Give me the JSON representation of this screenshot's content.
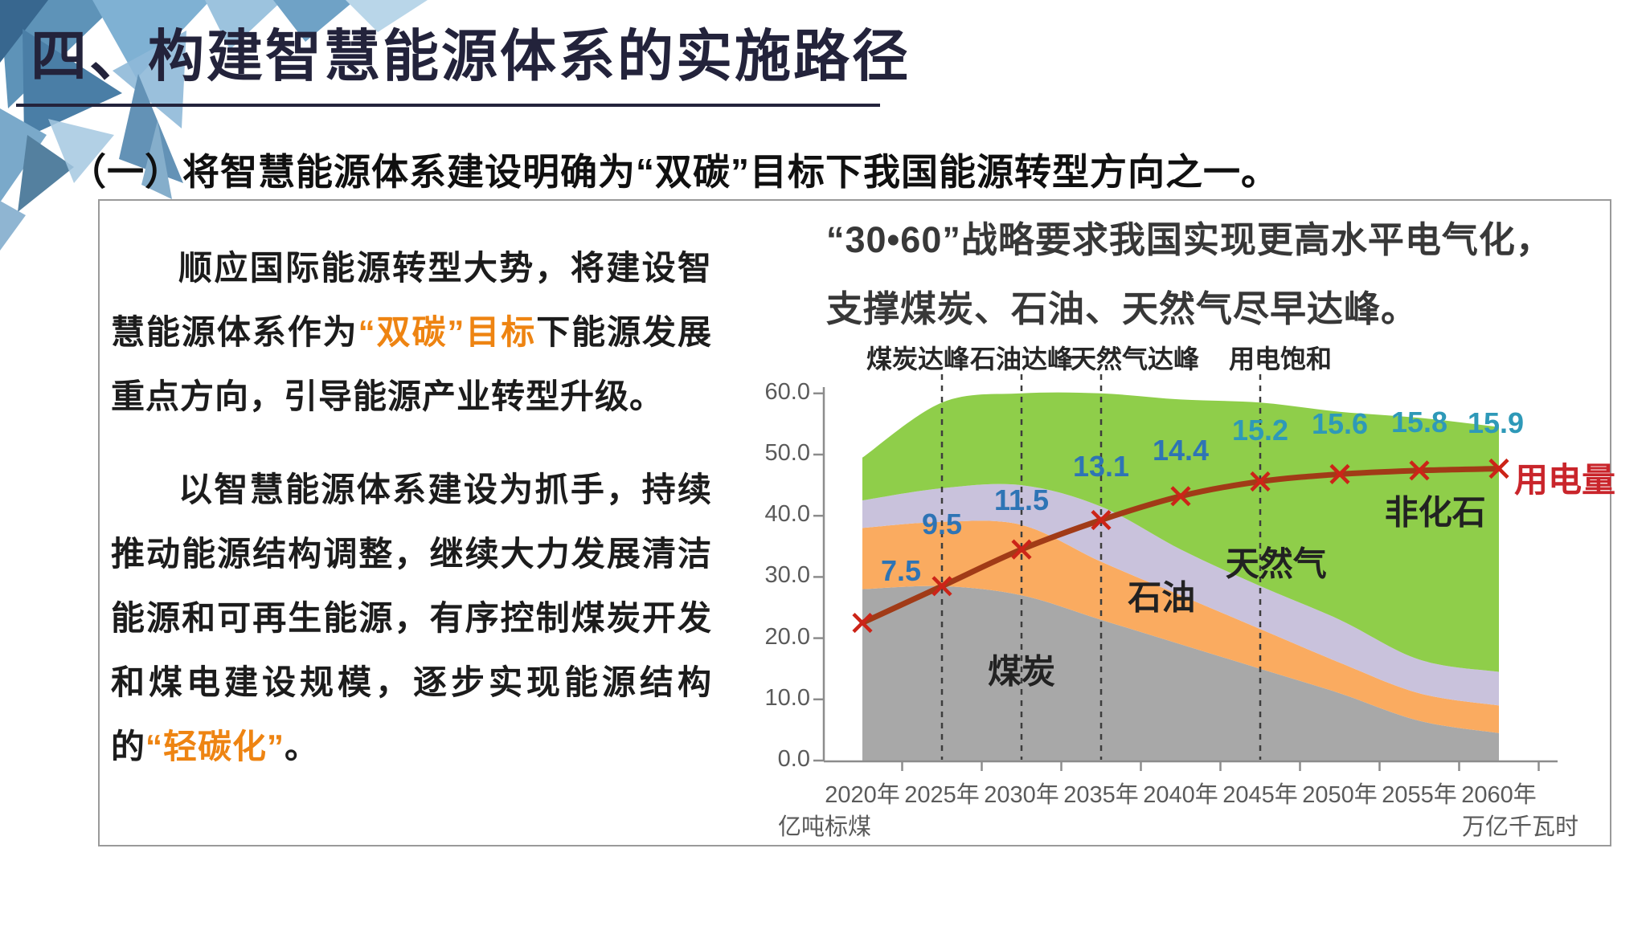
{
  "header": {
    "title": "四、构建智慧能源体系的实施路径",
    "subtitle": "（一）将智慧能源体系建设明确为“双碳”目标下我国能源转型方向之一。"
  },
  "left_panel": {
    "text_color": "#1c1c1c",
    "highlight_color": "#EE8412",
    "paragraph1": [
      {
        "text": "顺应国际能源转型大势，将建设智慧能源体系作为",
        "highlight": false
      },
      {
        "text": "“双碳”目标",
        "highlight": true
      },
      {
        "text": "下能源发展重点方向，引导能源产业转型升级。",
        "highlight": false
      }
    ],
    "paragraph2": [
      {
        "text": "以智慧能源体系建设为抓手，持续推动能源结构调整，继续大力发展清洁能源和可再生能源，有序控制煤炭开发和煤电建设规模，逐步实现能源结构的",
        "highlight": false
      },
      {
        "text": "“轻碳化”",
        "highlight": true
      },
      {
        "text": "。",
        "highlight": false
      }
    ]
  },
  "chart": {
    "title_line1": "“30•60”战略要求我国实现更高水平电气化，",
    "title_line2": "支撑煤炭、石油、天然气尽早达峰。"
  },
  "chart_data": {
    "type": "area",
    "stacked": true,
    "smooth": true,
    "grid": false,
    "x_categories": [
      "2020年",
      "2025年",
      "2030年",
      "2035年",
      "2040年",
      "2045年",
      "2050年",
      "2055年",
      "2060年"
    ],
    "years": [
      2020,
      2025,
      2030,
      2035,
      2040,
      2045,
      2050,
      2055,
      2060
    ],
    "ylim": [
      0,
      60
    ],
    "y_ticks": [
      "60.0",
      "50.0",
      "40.0",
      "30.0",
      "20.0",
      "10.0",
      "0.0"
    ],
    "left_axis_unit": "亿吨标煤",
    "right_axis_unit": "万亿千瓦时",
    "axis_color": "#8c8c8c",
    "tick_label_color": "#5a5a5a",
    "series": [
      {
        "name": "煤炭",
        "color": "#A8A8A8",
        "values": [
          28.0,
          28.5,
          27.0,
          23.0,
          19.0,
          15.0,
          11.0,
          6.5,
          4.5
        ]
      },
      {
        "name": "石油",
        "color": "#FAAB60",
        "values": [
          10.0,
          10.5,
          11.5,
          9.5,
          8.0,
          6.5,
          5.0,
          4.5,
          4.5
        ]
      },
      {
        "name": "天然气",
        "color": "#C9C2DC",
        "values": [
          4.5,
          5.5,
          6.5,
          9.0,
          7.5,
          7.0,
          7.0,
          5.5,
          5.5
        ]
      },
      {
        "name": "非化石",
        "color": "#8FCE4A",
        "values": [
          7.0,
          14.0,
          15.0,
          18.5,
          24.5,
          30.0,
          34.0,
          39.5,
          40.0
        ]
      }
    ],
    "line": {
      "label": "用电量",
      "label_color": "#C9252B",
      "color": "#A13B17",
      "marker_color": "#CC2418",
      "values_display": [
        "7.5",
        "9.5",
        "11.5",
        "13.1",
        "14.4",
        "15.2",
        "15.6",
        "15.8",
        "15.9"
      ],
      "values_plotted": [
        22.5,
        28.5,
        34.5,
        39.3,
        43.2,
        45.6,
        46.8,
        47.4,
        47.7
      ],
      "data_label_color_early": "#2E74B5",
      "data_label_color_late": "#2E99B8"
    },
    "peak_annotations": [
      {
        "label": "煤炭达峰",
        "year": 2025
      },
      {
        "label": "石油达峰",
        "year": 2030
      },
      {
        "label": "天然气达峰",
        "year": 2035
      },
      {
        "label": "用电饱和",
        "year": 2045
      }
    ],
    "area_labels": [
      {
        "label": "煤炭",
        "year": 2030,
        "value": 15.0
      },
      {
        "label": "石油",
        "year": 2038.8,
        "value": 27.0
      },
      {
        "label": "天然气",
        "year": 2046,
        "value": 32.5
      },
      {
        "label": "非化石",
        "year": 2056,
        "value": 41.0
      }
    ],
    "dashed_line_color": "#3d3d3d"
  }
}
